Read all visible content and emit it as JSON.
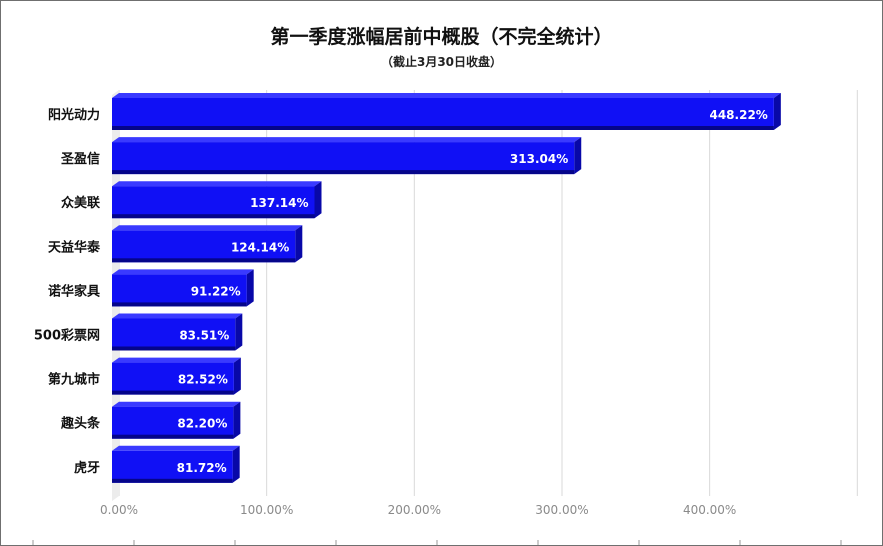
{
  "chart_data": {
    "type": "bar",
    "orientation": "horizontal",
    "title": "第一季度涨幅居前中概股（不完全统计）",
    "subtitle": "（截止3月30日收盘）",
    "categories": [
      "阳光动力",
      "圣盈信",
      "众美联",
      "天益华泰",
      "诺华家具",
      "500彩票网",
      "第九城市",
      "趣头条",
      "虎牙"
    ],
    "values": [
      448.22,
      313.04,
      137.14,
      124.14,
      91.22,
      83.51,
      82.52,
      82.2,
      81.72
    ],
    "data_labels": [
      "448.22%",
      "313.04%",
      "137.14%",
      "124.14%",
      "91.22%",
      "83.51%",
      "82.52%",
      "82.20%",
      "81.72%"
    ],
    "x_ticks": [
      0,
      100,
      200,
      300,
      400
    ],
    "x_tick_labels": [
      "0.00%",
      "100.00%",
      "200.00%",
      "300.00%",
      "400.00%"
    ],
    "xlim": [
      0,
      500
    ],
    "xlabel": "",
    "ylabel": "",
    "grid": true,
    "legend": "none",
    "colors": {
      "bar_front": "#1010f5",
      "bar_top": "#3a3aff",
      "bar_side": "#0808a8",
      "bar_bottom": "#05058a",
      "grid": "#d9d9d9",
      "tick_text": "#8a8a8a",
      "category_text": "#111111",
      "value_text": "#ffffff"
    }
  }
}
